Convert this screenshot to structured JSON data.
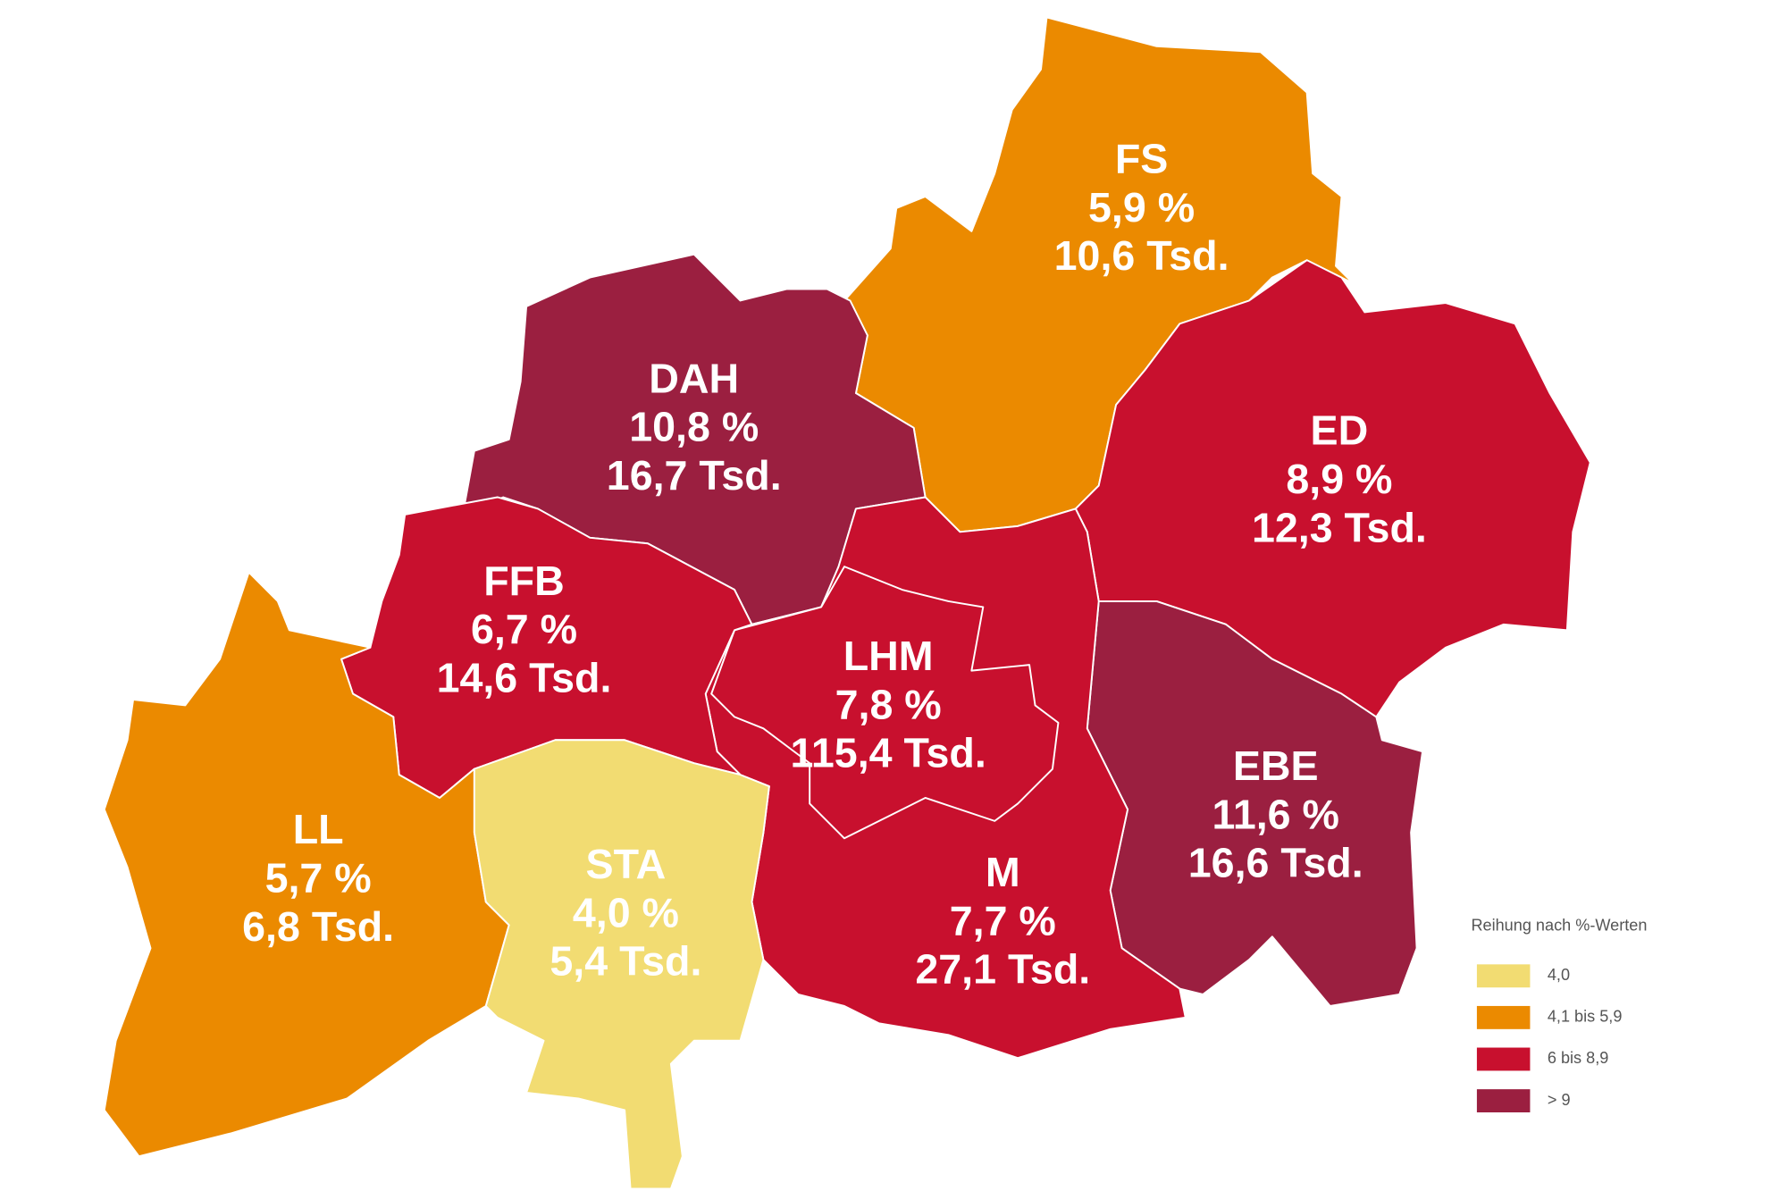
{
  "map": {
    "regions": [
      {
        "code": "FS",
        "share": "5,9 %",
        "count": "10,6 Tsd.",
        "color": "#eb8a00"
      },
      {
        "code": "DAH",
        "share": "10,8 %",
        "count": "16,7 Tsd.",
        "color": "#9b1f40"
      },
      {
        "code": "ED",
        "share": "8,9 %",
        "count": "12,3 Tsd.",
        "color": "#c8102e"
      },
      {
        "code": "EBE",
        "share": "11,6 %",
        "count": "16,6 Tsd.",
        "color": "#9b1f40"
      },
      {
        "code": "M",
        "share": "7,7 %",
        "count": "27,1 Tsd.",
        "color": "#c8102e"
      },
      {
        "code": "LHM",
        "share": "7,8 %",
        "count": "115,4 Tsd.",
        "color": "#c8102e"
      },
      {
        "code": "FFB",
        "share": "6,7 %",
        "count": "14,6 Tsd.",
        "color": "#c8102e"
      },
      {
        "code": "LL",
        "share": "5,7 %",
        "count": "6,8 Tsd.",
        "color": "#eb8a00"
      },
      {
        "code": "STA",
        "share": "4,0 %",
        "count": "5,4 Tsd.",
        "color": "#f2dc72"
      }
    ],
    "legend": {
      "title": "Reihung nach %-Werten",
      "items": [
        {
          "label": "4,0",
          "color": "#f2dc72"
        },
        {
          "label": "4,1 bis 5,9",
          "color": "#eb8a00"
        },
        {
          "label": "6 bis 8,9",
          "color": "#c8102e"
        },
        {
          "label": "> 9",
          "color": "#9b1f40"
        }
      ]
    }
  }
}
